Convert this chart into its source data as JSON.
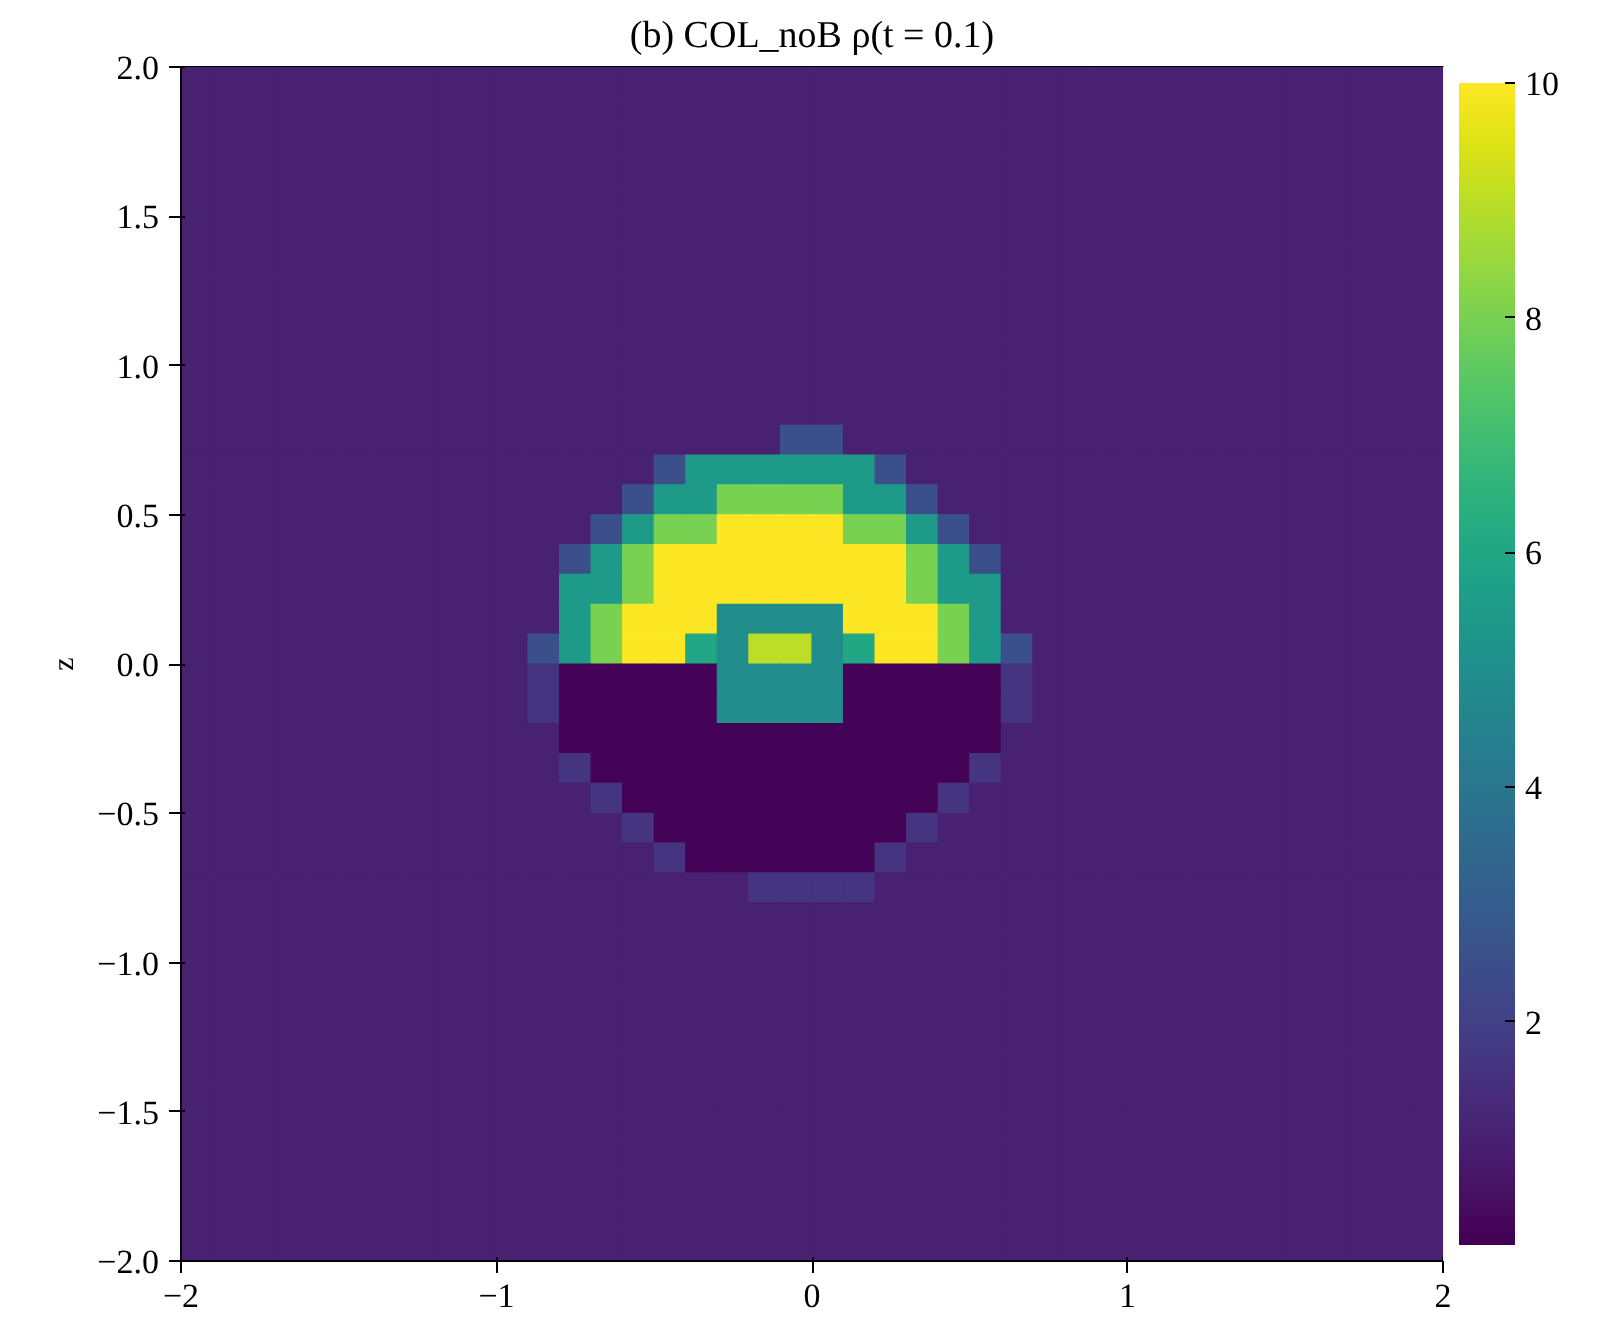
{
  "chart_data": {
    "type": "heatmap",
    "title": "(b) COL_noB ρ(t = 0.1)",
    "ylabel": "z",
    "x": [
      -1.95,
      -1.85,
      -1.75,
      -1.65,
      -1.55,
      -1.45,
      -1.35,
      -1.25,
      -1.15,
      -1.05,
      -0.95,
      -0.85,
      -0.75,
      -0.65,
      -0.55,
      -0.45,
      -0.35,
      -0.25,
      -0.15,
      -0.05,
      0.05,
      0.15,
      0.25,
      0.35,
      0.45,
      0.55,
      0.65,
      0.75,
      0.85,
      0.95,
      1.05,
      1.15,
      1.25,
      1.35,
      1.45,
      1.55,
      1.65,
      1.75,
      1.85,
      1.95
    ],
    "y": [
      1.95,
      1.85,
      1.75,
      1.65,
      1.55,
      1.45,
      1.35,
      1.25,
      1.15,
      1.05,
      0.95,
      0.85,
      0.75,
      0.65,
      0.55,
      0.45,
      0.35,
      0.25,
      0.15,
      0.05,
      -0.05,
      -0.15,
      -0.25,
      -0.35,
      -0.45,
      -0.55,
      -0.65,
      -0.75,
      -0.85,
      -0.95,
      -1.05,
      -1.15,
      -1.25,
      -1.35,
      -1.45,
      -1.55,
      -1.65,
      -1.75,
      -1.85,
      -1.95
    ],
    "xlim": [
      -2,
      2
    ],
    "ylim": [
      -2,
      2
    ],
    "xticks": [
      {
        "value": -2,
        "label": "−2"
      },
      {
        "value": -1,
        "label": "−1"
      },
      0,
      1,
      2
    ],
    "yticks": [
      {
        "value": -2,
        "label": "−2.0"
      },
      {
        "value": -1.5,
        "label": "−1.5"
      },
      {
        "value": -1,
        "label": "−1.0"
      },
      {
        "value": -0.5,
        "label": "−0.5"
      },
      {
        "value": 0,
        "label": "0.0"
      },
      0.5,
      {
        "value": 1,
        "label": "1.0"
      },
      1.5,
      {
        "value": 2,
        "label": "2.0"
      }
    ],
    "clim": [
      0.1,
      10
    ],
    "cticks": [
      2,
      4,
      6,
      8,
      10
    ],
    "cells": [
      [
        1,
        1,
        1,
        1,
        1,
        1,
        1,
        1,
        1,
        1,
        1,
        1,
        1,
        1,
        1,
        1,
        1,
        1,
        1,
        1,
        1,
        1,
        1,
        1,
        1,
        1,
        1,
        1,
        1,
        1,
        1,
        1,
        1,
        1,
        1,
        1,
        1,
        1,
        1,
        1
      ],
      [
        1,
        1,
        1,
        1,
        1,
        1,
        1,
        1,
        1,
        1,
        1,
        1,
        1,
        1,
        1,
        1,
        1,
        1,
        1,
        1,
        1,
        1,
        1,
        1,
        1,
        1,
        1,
        1,
        1,
        1,
        1,
        1,
        1,
        1,
        1,
        1,
        1,
        1,
        1,
        1
      ],
      [
        1,
        1,
        1,
        1,
        1,
        1,
        1,
        1,
        1,
        1,
        1,
        1,
        1,
        1,
        1,
        1,
        1,
        1,
        1,
        1,
        1,
        1,
        1,
        1,
        1,
        1,
        1,
        1,
        1,
        1,
        1,
        1,
        1,
        1,
        1,
        1,
        1,
        1,
        1,
        1
      ],
      [
        1,
        1,
        1,
        1,
        1,
        1,
        1,
        1,
        1,
        1,
        1,
        1,
        1,
        1,
        1,
        1,
        1,
        1,
        1,
        1,
        1,
        1,
        1,
        1,
        1,
        1,
        1,
        1,
        1,
        1,
        1,
        1,
        1,
        1,
        1,
        1,
        1,
        1,
        1,
        1
      ],
      [
        1,
        1,
        1,
        1,
        1,
        1,
        1,
        1,
        1,
        1,
        1,
        1,
        1,
        1,
        1,
        1,
        1,
        1,
        1,
        1,
        1,
        1,
        1,
        1,
        1,
        1,
        1,
        1,
        1,
        1,
        1,
        1,
        1,
        1,
        1,
        1,
        1,
        1,
        1,
        1
      ],
      [
        1,
        1,
        1,
        1,
        1,
        1,
        1,
        1,
        1,
        1,
        1,
        1,
        1,
        1,
        1,
        1,
        1,
        1,
        1,
        1,
        1,
        1,
        1,
        1,
        1,
        1,
        1,
        1,
        1,
        1,
        1,
        1,
        1,
        1,
        1,
        1,
        1,
        1,
        1,
        1
      ],
      [
        1,
        1,
        1,
        1,
        1,
        1,
        1,
        1,
        1,
        1,
        1,
        1,
        1,
        1,
        1,
        1,
        1,
        1,
        1,
        1,
        1,
        1,
        1,
        1,
        1,
        1,
        1,
        1,
        1,
        1,
        1,
        1,
        1,
        1,
        1,
        1,
        1,
        1,
        1,
        1
      ],
      [
        1,
        1,
        1,
        1,
        1,
        1,
        1,
        1,
        1,
        1,
        1,
        1,
        1,
        1,
        1,
        1,
        1,
        1,
        1,
        1,
        1,
        1,
        1,
        1,
        1,
        1,
        1,
        1,
        1,
        1,
        1,
        1,
        1,
        1,
        1,
        1,
        1,
        1,
        1,
        1
      ],
      [
        1,
        1,
        1,
        1,
        1,
        1,
        1,
        1,
        1,
        1,
        1,
        1,
        1,
        1,
        1,
        1,
        1,
        1,
        1,
        1,
        1,
        1,
        1,
        1,
        1,
        1,
        1,
        1,
        1,
        1,
        1,
        1,
        1,
        1,
        1,
        1,
        1,
        1,
        1,
        1
      ],
      [
        1,
        1,
        1,
        1,
        1,
        1,
        1,
        1,
        1,
        1,
        1,
        1,
        1,
        1,
        1,
        1,
        1,
        1,
        1,
        1,
        1,
        1,
        1,
        1,
        1,
        1,
        1,
        1,
        1,
        1,
        1,
        1,
        1,
        1,
        1,
        1,
        1,
        1,
        1,
        1
      ],
      [
        1,
        1,
        1,
        1,
        1,
        1,
        1,
        1,
        1,
        1,
        1,
        1,
        1,
        1,
        1,
        1,
        1,
        1,
        1,
        1,
        1,
        1,
        1,
        1,
        1,
        1,
        1,
        1,
        1,
        1,
        1,
        1,
        1,
        1,
        1,
        1,
        1,
        1,
        1,
        1
      ],
      [
        1,
        1,
        1,
        1,
        1,
        1,
        1,
        1,
        1,
        1,
        1,
        1,
        1,
        1,
        1,
        1,
        1,
        1,
        1,
        1,
        1,
        1,
        1,
        1,
        1,
        1,
        1,
        1,
        1,
        1,
        1,
        1,
        1,
        1,
        1,
        1,
        1,
        1,
        1,
        1
      ],
      [
        1,
        1,
        1,
        1,
        1,
        1,
        1,
        1,
        1,
        1,
        1,
        1,
        1,
        1,
        1,
        1,
        1,
        1,
        1,
        2.5,
        2.5,
        1,
        1,
        1,
        1,
        1,
        1,
        1,
        1,
        1,
        1,
        1,
        1,
        1,
        1,
        1,
        1,
        1,
        1,
        1
      ],
      [
        1,
        1,
        1,
        1,
        1,
        1,
        1,
        1,
        1,
        1,
        1,
        1,
        1,
        1,
        1,
        2.5,
        5.5,
        5.5,
        5.5,
        5.5,
        5.5,
        5.5,
        2.5,
        1,
        1,
        1,
        1,
        1,
        1,
        1,
        1,
        1,
        1,
        1,
        1,
        1,
        1,
        1,
        1,
        1
      ],
      [
        1,
        1,
        1,
        1,
        1,
        1,
        1,
        1,
        1,
        1,
        1,
        1,
        1,
        1,
        2.5,
        5.5,
        5.5,
        8,
        8,
        8,
        8,
        5.5,
        5.5,
        2.5,
        1,
        1,
        1,
        1,
        1,
        1,
        1,
        1,
        1,
        1,
        1,
        1,
        1,
        1,
        1,
        1
      ],
      [
        1,
        1,
        1,
        1,
        1,
        1,
        1,
        1,
        1,
        1,
        1,
        1,
        1,
        2.5,
        5.5,
        8,
        8,
        10,
        10,
        10,
        10,
        8,
        8,
        5.5,
        2.5,
        1,
        1,
        1,
        1,
        1,
        1,
        1,
        1,
        1,
        1,
        1,
        1,
        1,
        1,
        1
      ],
      [
        1,
        1,
        1,
        1,
        1,
        1,
        1,
        1,
        1,
        1,
        1,
        1,
        2.5,
        5.5,
        8,
        10,
        10,
        10,
        10,
        10,
        10,
        10,
        10,
        8,
        5.5,
        2.5,
        1,
        1,
        1,
        1,
        1,
        1,
        1,
        1,
        1,
        1,
        1,
        1,
        1,
        1
      ],
      [
        1,
        1,
        1,
        1,
        1,
        1,
        1,
        1,
        1,
        1,
        1,
        1,
        5.5,
        5.5,
        8,
        10,
        10,
        10,
        10,
        10,
        10,
        10,
        10,
        8,
        5.5,
        5.5,
        1,
        1,
        1,
        1,
        1,
        1,
        1,
        1,
        1,
        1,
        1,
        1,
        1,
        1
      ],
      [
        1,
        1,
        1,
        1,
        1,
        1,
        1,
        1,
        1,
        1,
        1,
        1,
        5.5,
        8,
        10,
        10,
        10,
        5,
        5,
        5,
        5,
        10,
        10,
        10,
        8,
        5.5,
        1,
        1,
        1,
        1,
        1,
        1,
        1,
        1,
        1,
        1,
        1,
        1,
        1,
        1
      ],
      [
        1,
        1,
        1,
        1,
        1,
        1,
        1,
        1,
        1,
        1,
        1,
        2.5,
        5.5,
        8,
        10,
        10,
        6,
        5,
        9,
        9,
        5,
        6,
        10,
        10,
        8,
        5.5,
        2.5,
        1,
        1,
        1,
        1,
        1,
        1,
        1,
        1,
        1,
        1,
        1,
        1,
        1
      ],
      [
        1,
        1,
        1,
        1,
        1,
        1,
        1,
        1,
        1,
        1,
        1,
        1.6,
        0.2,
        0.2,
        0.2,
        0.2,
        0.2,
        5,
        5,
        5,
        5,
        0.2,
        0.2,
        0.2,
        0.2,
        0.2,
        1.6,
        1,
        1,
        1,
        1,
        1,
        1,
        1,
        1,
        1,
        1,
        1,
        1,
        1
      ],
      [
        1,
        1,
        1,
        1,
        1,
        1,
        1,
        1,
        1,
        1,
        1,
        1.6,
        0.2,
        0.2,
        0.2,
        0.2,
        0.2,
        5,
        5,
        5,
        5,
        0.2,
        0.2,
        0.2,
        0.2,
        0.2,
        1.6,
        1,
        1,
        1,
        1,
        1,
        1,
        1,
        1,
        1,
        1,
        1,
        1,
        1
      ],
      [
        1,
        1,
        1,
        1,
        1,
        1,
        1,
        1,
        1,
        1,
        1,
        1,
        0.2,
        0.2,
        0.2,
        0.2,
        0.2,
        0.2,
        0.2,
        0.2,
        0.2,
        0.2,
        0.2,
        0.2,
        0.2,
        0.2,
        1,
        1,
        1,
        1,
        1,
        1,
        1,
        1,
        1,
        1,
        1,
        1,
        1,
        1
      ],
      [
        1,
        1,
        1,
        1,
        1,
        1,
        1,
        1,
        1,
        1,
        1,
        1,
        1.6,
        0.2,
        0.2,
        0.2,
        0.2,
        0.2,
        0.2,
        0.2,
        0.2,
        0.2,
        0.2,
        0.2,
        0.2,
        1.6,
        1,
        1,
        1,
        1,
        1,
        1,
        1,
        1,
        1,
        1,
        1,
        1,
        1,
        1
      ],
      [
        1,
        1,
        1,
        1,
        1,
        1,
        1,
        1,
        1,
        1,
        1,
        1,
        1,
        1.6,
        0.2,
        0.2,
        0.2,
        0.2,
        0.2,
        0.2,
        0.2,
        0.2,
        0.2,
        0.2,
        1.6,
        1,
        1,
        1,
        1,
        1,
        1,
        1,
        1,
        1,
        1,
        1,
        1,
        1,
        1,
        1
      ],
      [
        1,
        1,
        1,
        1,
        1,
        1,
        1,
        1,
        1,
        1,
        1,
        1,
        1,
        1,
        1.6,
        0.2,
        0.2,
        0.2,
        0.2,
        0.2,
        0.2,
        0.2,
        0.2,
        1.6,
        1,
        1,
        1,
        1,
        1,
        1,
        1,
        1,
        1,
        1,
        1,
        1,
        1,
        1,
        1,
        1
      ],
      [
        1,
        1,
        1,
        1,
        1,
        1,
        1,
        1,
        1,
        1,
        1,
        1,
        1,
        1,
        1,
        1.6,
        0.2,
        0.2,
        0.2,
        0.2,
        0.2,
        0.2,
        1.6,
        1,
        1,
        1,
        1,
        1,
        1,
        1,
        1,
        1,
        1,
        1,
        1,
        1,
        1,
        1,
        1,
        1
      ],
      [
        1,
        1,
        1,
        1,
        1,
        1,
        1,
        1,
        1,
        1,
        1,
        1,
        1,
        1,
        1,
        1,
        1,
        1,
        1.6,
        1.6,
        1.6,
        1.6,
        1,
        1,
        1,
        1,
        1,
        1,
        1,
        1,
        1,
        1,
        1,
        1,
        1,
        1,
        1,
        1,
        1,
        1
      ],
      [
        1,
        1,
        1,
        1,
        1,
        1,
        1,
        1,
        1,
        1,
        1,
        1,
        1,
        1,
        1,
        1,
        1,
        1,
        1,
        1,
        1,
        1,
        1,
        1,
        1,
        1,
        1,
        1,
        1,
        1,
        1,
        1,
        1,
        1,
        1,
        1,
        1,
        1,
        1,
        1
      ],
      [
        1,
        1,
        1,
        1,
        1,
        1,
        1,
        1,
        1,
        1,
        1,
        1,
        1,
        1,
        1,
        1,
        1,
        1,
        1,
        1,
        1,
        1,
        1,
        1,
        1,
        1,
        1,
        1,
        1,
        1,
        1,
        1,
        1,
        1,
        1,
        1,
        1,
        1,
        1,
        1
      ],
      [
        1,
        1,
        1,
        1,
        1,
        1,
        1,
        1,
        1,
        1,
        1,
        1,
        1,
        1,
        1,
        1,
        1,
        1,
        1,
        1,
        1,
        1,
        1,
        1,
        1,
        1,
        1,
        1,
        1,
        1,
        1,
        1,
        1,
        1,
        1,
        1,
        1,
        1,
        1,
        1
      ],
      [
        1,
        1,
        1,
        1,
        1,
        1,
        1,
        1,
        1,
        1,
        1,
        1,
        1,
        1,
        1,
        1,
        1,
        1,
        1,
        1,
        1,
        1,
        1,
        1,
        1,
        1,
        1,
        1,
        1,
        1,
        1,
        1,
        1,
        1,
        1,
        1,
        1,
        1,
        1,
        1
      ],
      [
        1,
        1,
        1,
        1,
        1,
        1,
        1,
        1,
        1,
        1,
        1,
        1,
        1,
        1,
        1,
        1,
        1,
        1,
        1,
        1,
        1,
        1,
        1,
        1,
        1,
        1,
        1,
        1,
        1,
        1,
        1,
        1,
        1,
        1,
        1,
        1,
        1,
        1,
        1,
        1
      ],
      [
        1,
        1,
        1,
        1,
        1,
        1,
        1,
        1,
        1,
        1,
        1,
        1,
        1,
        1,
        1,
        1,
        1,
        1,
        1,
        1,
        1,
        1,
        1,
        1,
        1,
        1,
        1,
        1,
        1,
        1,
        1,
        1,
        1,
        1,
        1,
        1,
        1,
        1,
        1,
        1
      ],
      [
        1,
        1,
        1,
        1,
        1,
        1,
        1,
        1,
        1,
        1,
        1,
        1,
        1,
        1,
        1,
        1,
        1,
        1,
        1,
        1,
        1,
        1,
        1,
        1,
        1,
        1,
        1,
        1,
        1,
        1,
        1,
        1,
        1,
        1,
        1,
        1,
        1,
        1,
        1,
        1
      ],
      [
        1,
        1,
        1,
        1,
        1,
        1,
        1,
        1,
        1,
        1,
        1,
        1,
        1,
        1,
        1,
        1,
        1,
        1,
        1,
        1,
        1,
        1,
        1,
        1,
        1,
        1,
        1,
        1,
        1,
        1,
        1,
        1,
        1,
        1,
        1,
        1,
        1,
        1,
        1,
        1
      ],
      [
        1,
        1,
        1,
        1,
        1,
        1,
        1,
        1,
        1,
        1,
        1,
        1,
        1,
        1,
        1,
        1,
        1,
        1,
        1,
        1,
        1,
        1,
        1,
        1,
        1,
        1,
        1,
        1,
        1,
        1,
        1,
        1,
        1,
        1,
        1,
        1,
        1,
        1,
        1,
        1
      ],
      [
        1,
        1,
        1,
        1,
        1,
        1,
        1,
        1,
        1,
        1,
        1,
        1,
        1,
        1,
        1,
        1,
        1,
        1,
        1,
        1,
        1,
        1,
        1,
        1,
        1,
        1,
        1,
        1,
        1,
        1,
        1,
        1,
        1,
        1,
        1,
        1,
        1,
        1,
        1,
        1
      ],
      [
        1,
        1,
        1,
        1,
        1,
        1,
        1,
        1,
        1,
        1,
        1,
        1,
        1,
        1,
        1,
        1,
        1,
        1,
        1,
        1,
        1,
        1,
        1,
        1,
        1,
        1,
        1,
        1,
        1,
        1,
        1,
        1,
        1,
        1,
        1,
        1,
        1,
        1,
        1,
        1
      ],
      [
        1,
        1,
        1,
        1,
        1,
        1,
        1,
        1,
        1,
        1,
        1,
        1,
        1,
        1,
        1,
        1,
        1,
        1,
        1,
        1,
        1,
        1,
        1,
        1,
        1,
        1,
        1,
        1,
        1,
        1,
        1,
        1,
        1,
        1,
        1,
        1,
        1,
        1,
        1,
        1
      ]
    ]
  }
}
